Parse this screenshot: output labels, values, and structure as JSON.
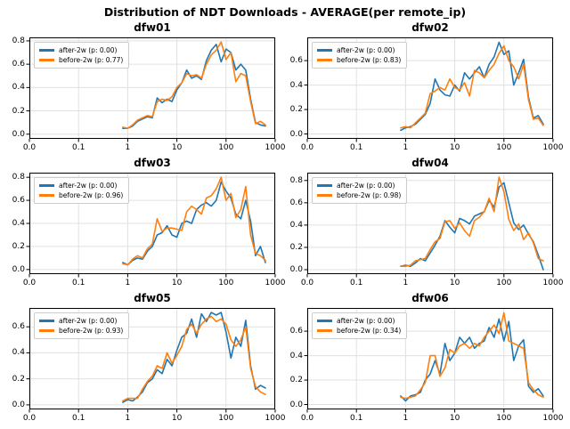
{
  "figure": {
    "suptitle": "Distribution of NDT Downloads - AVERAGE(per remote_ip)"
  },
  "colors": {
    "after": "#1f77b4",
    "before": "#ff7f0e",
    "grid": "#e0e0e0",
    "spine": "#000000",
    "legend_border": "#cccccc"
  },
  "chart_data": {
    "type": "line",
    "x_scale": "log",
    "xlim": [
      0.01,
      1000
    ],
    "xtick_labels": [
      "0.0",
      "0.1",
      "1",
      "10",
      "100",
      "1000"
    ],
    "xtick_log10": [
      -2,
      -1,
      0,
      1,
      2,
      3
    ],
    "x_log10_start": -0.1,
    "x_log10_step": 0.1,
    "grid": true,
    "legend_position": "upper-left",
    "subplots": [
      {
        "title": "dfw01",
        "ylim": [
          -0.04,
          0.83
        ],
        "yticks": [
          0.0,
          0.2,
          0.4,
          0.6,
          0.8
        ],
        "series": [
          {
            "name": "after-2w",
            "label": "after-2w (p: 0.00)",
            "color": "#1f77b4",
            "values": [
              0.05,
              0.05,
              0.07,
              0.11,
              0.13,
              0.15,
              0.14,
              0.31,
              0.27,
              0.3,
              0.28,
              0.38,
              0.44,
              0.55,
              0.48,
              0.5,
              0.47,
              0.63,
              0.72,
              0.77,
              0.62,
              0.73,
              0.7,
              0.55,
              0.6,
              0.55,
              0.3,
              0.1,
              0.08,
              0.07
            ]
          },
          {
            "name": "before-2w",
            "label": "before-2w (p: 0.77)",
            "color": "#ff7f0e",
            "values": [
              0.06,
              0.05,
              0.08,
              0.12,
              0.14,
              0.16,
              0.15,
              0.28,
              0.3,
              0.29,
              0.32,
              0.4,
              0.44,
              0.52,
              0.5,
              0.51,
              0.48,
              0.6,
              0.68,
              0.72,
              0.79,
              0.64,
              0.7,
              0.45,
              0.52,
              0.5,
              0.28,
              0.09,
              0.11,
              0.08
            ]
          }
        ]
      },
      {
        "title": "dfw02",
        "ylim": [
          -0.04,
          0.79
        ],
        "yticks": [
          0.0,
          0.2,
          0.4,
          0.6
        ],
        "series": [
          {
            "name": "after-2w",
            "label": "after-2w (p: 0.00)",
            "color": "#1f77b4",
            "values": [
              0.03,
              0.05,
              0.06,
              0.08,
              0.12,
              0.16,
              0.25,
              0.45,
              0.36,
              0.32,
              0.31,
              0.4,
              0.35,
              0.5,
              0.45,
              0.5,
              0.55,
              0.46,
              0.57,
              0.63,
              0.75,
              0.65,
              0.68,
              0.4,
              0.5,
              0.61,
              0.3,
              0.13,
              0.15,
              0.08
            ]
          },
          {
            "name": "before-2w",
            "label": "before-2w (p: 0.83)",
            "color": "#ff7f0e",
            "values": [
              0.05,
              0.06,
              0.05,
              0.09,
              0.13,
              0.17,
              0.33,
              0.35,
              0.38,
              0.36,
              0.45,
              0.38,
              0.36,
              0.42,
              0.31,
              0.52,
              0.5,
              0.46,
              0.52,
              0.57,
              0.66,
              0.72,
              0.6,
              0.55,
              0.45,
              0.57,
              0.28,
              0.12,
              0.13,
              0.07
            ]
          }
        ]
      },
      {
        "title": "dfw03",
        "ylim": [
          -0.04,
          0.84
        ],
        "yticks": [
          0.0,
          0.2,
          0.4,
          0.6,
          0.8
        ],
        "series": [
          {
            "name": "after-2w",
            "label": "after-2w (p: 0.00)",
            "color": "#1f77b4",
            "values": [
              0.06,
              0.04,
              0.08,
              0.1,
              0.09,
              0.16,
              0.2,
              0.3,
              0.32,
              0.38,
              0.3,
              0.28,
              0.4,
              0.42,
              0.4,
              0.52,
              0.56,
              0.58,
              0.55,
              0.6,
              0.76,
              0.68,
              0.62,
              0.48,
              0.44,
              0.6,
              0.42,
              0.12,
              0.2,
              0.06
            ]
          },
          {
            "name": "before-2w",
            "label": "before-2w (p: 0.96)",
            "color": "#ff7f0e",
            "values": [
              0.05,
              0.04,
              0.09,
              0.12,
              0.1,
              0.18,
              0.22,
              0.44,
              0.33,
              0.36,
              0.36,
              0.35,
              0.34,
              0.5,
              0.55,
              0.52,
              0.48,
              0.62,
              0.64,
              0.7,
              0.8,
              0.6,
              0.66,
              0.45,
              0.52,
              0.72,
              0.3,
              0.14,
              0.12,
              0.08
            ]
          }
        ]
      },
      {
        "title": "dfw04",
        "ylim": [
          -0.04,
          0.87
        ],
        "yticks": [
          0.0,
          0.2,
          0.4,
          0.6,
          0.8
        ],
        "series": [
          {
            "name": "after-2w",
            "label": "after-2w (p: 0.00)",
            "color": "#1f77b4",
            "values": [
              0.03,
              0.04,
              0.03,
              0.06,
              0.1,
              0.08,
              0.15,
              0.22,
              0.3,
              0.44,
              0.38,
              0.33,
              0.46,
              0.44,
              0.41,
              0.48,
              0.5,
              0.52,
              0.62,
              0.56,
              0.74,
              0.78,
              0.6,
              0.42,
              0.36,
              0.4,
              0.32,
              0.25,
              0.13,
              0.0
            ]
          },
          {
            "name": "before-2w",
            "label": "before-2w (p: 0.98)",
            "color": "#ff7f0e",
            "values": [
              0.03,
              0.03,
              0.04,
              0.08,
              0.09,
              0.1,
              0.18,
              0.25,
              0.28,
              0.43,
              0.44,
              0.37,
              0.42,
              0.35,
              0.3,
              0.44,
              0.47,
              0.52,
              0.64,
              0.52,
              0.83,
              0.7,
              0.45,
              0.35,
              0.41,
              0.27,
              0.33,
              0.24,
              0.1,
              0.08
            ]
          }
        ]
      },
      {
        "title": "dfw05",
        "ylim": [
          -0.035,
          0.745
        ],
        "yticks": [
          0.0,
          0.2,
          0.4,
          0.6
        ],
        "series": [
          {
            "name": "after-2w",
            "label": "after-2w (p: 0.00)",
            "color": "#1f77b4",
            "values": [
              0.02,
              0.04,
              0.03,
              0.06,
              0.1,
              0.17,
              0.2,
              0.27,
              0.24,
              0.35,
              0.3,
              0.42,
              0.52,
              0.55,
              0.66,
              0.52,
              0.7,
              0.64,
              0.71,
              0.69,
              0.71,
              0.56,
              0.36,
              0.52,
              0.45,
              0.65,
              0.3,
              0.12,
              0.15,
              0.13
            ]
          },
          {
            "name": "before-2w",
            "label": "before-2w (p: 0.93)",
            "color": "#ff7f0e",
            "values": [
              0.03,
              0.05,
              0.05,
              0.05,
              0.12,
              0.18,
              0.22,
              0.3,
              0.28,
              0.4,
              0.32,
              0.38,
              0.45,
              0.58,
              0.62,
              0.55,
              0.62,
              0.66,
              0.68,
              0.64,
              0.66,
              0.62,
              0.5,
              0.45,
              0.5,
              0.6,
              0.28,
              0.14,
              0.1,
              0.08
            ]
          }
        ]
      },
      {
        "title": "dfw06",
        "ylim": [
          -0.04,
          0.79
        ],
        "yticks": [
          0.0,
          0.2,
          0.4,
          0.6
        ],
        "series": [
          {
            "name": "after-2w",
            "label": "after-2w (p: 0.00)",
            "color": "#1f77b4",
            "values": [
              0.07,
              0.03,
              0.07,
              0.08,
              0.1,
              0.2,
              0.25,
              0.36,
              0.25,
              0.5,
              0.36,
              0.42,
              0.55,
              0.5,
              0.55,
              0.46,
              0.5,
              0.52,
              0.63,
              0.55,
              0.7,
              0.52,
              0.68,
              0.36,
              0.48,
              0.53,
              0.15,
              0.1,
              0.13,
              0.07
            ]
          },
          {
            "name": "before-2w",
            "label": "before-2w (p: 0.34)",
            "color": "#ff7f0e",
            "values": [
              0.06,
              0.05,
              0.06,
              0.07,
              0.12,
              0.18,
              0.4,
              0.4,
              0.23,
              0.3,
              0.45,
              0.42,
              0.48,
              0.5,
              0.46,
              0.5,
              0.48,
              0.55,
              0.6,
              0.65,
              0.58,
              0.75,
              0.52,
              0.5,
              0.48,
              0.46,
              0.18,
              0.12,
              0.08,
              0.06
            ]
          }
        ]
      }
    ]
  }
}
